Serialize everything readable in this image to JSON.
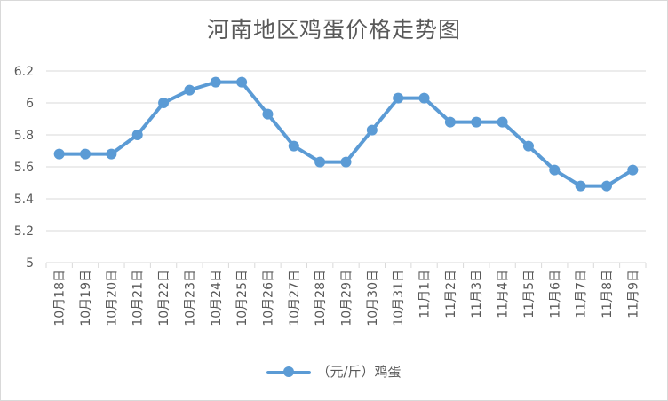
{
  "chart_data": {
    "type": "line",
    "title": "河南地区鸡蛋价格走势图",
    "categories": [
      "10月18日",
      "10月19日",
      "10月20日",
      "10月21日",
      "10月22日",
      "10月23日",
      "10月24日",
      "10月25日",
      "10月26日",
      "10月27日",
      "10月28日",
      "10月29日",
      "10月30日",
      "10月31日",
      "11月1日",
      "11月2日",
      "11月3日",
      "11月4日",
      "11月5日",
      "11月6日",
      "11月7日",
      "11月8日",
      "11月9日"
    ],
    "series": [
      {
        "name": "（元/斤）鸡蛋",
        "values": [
          5.68,
          5.68,
          5.68,
          5.8,
          6.0,
          6.08,
          6.13,
          6.13,
          5.93,
          5.73,
          5.63,
          5.63,
          5.83,
          6.03,
          6.03,
          5.88,
          5.88,
          5.88,
          5.73,
          5.58,
          5.48,
          5.48,
          5.58
        ]
      }
    ],
    "y_ticks": [
      "5",
      "5.2",
      "5.4",
      "5.6",
      "5.8",
      "6",
      "6.2"
    ],
    "ylim": [
      5,
      6.2
    ],
    "grid": true,
    "legend_position": "bottom",
    "colors": {
      "series": "#5b9bd5",
      "grid": "#d9d9d9",
      "text": "#595959"
    }
  }
}
